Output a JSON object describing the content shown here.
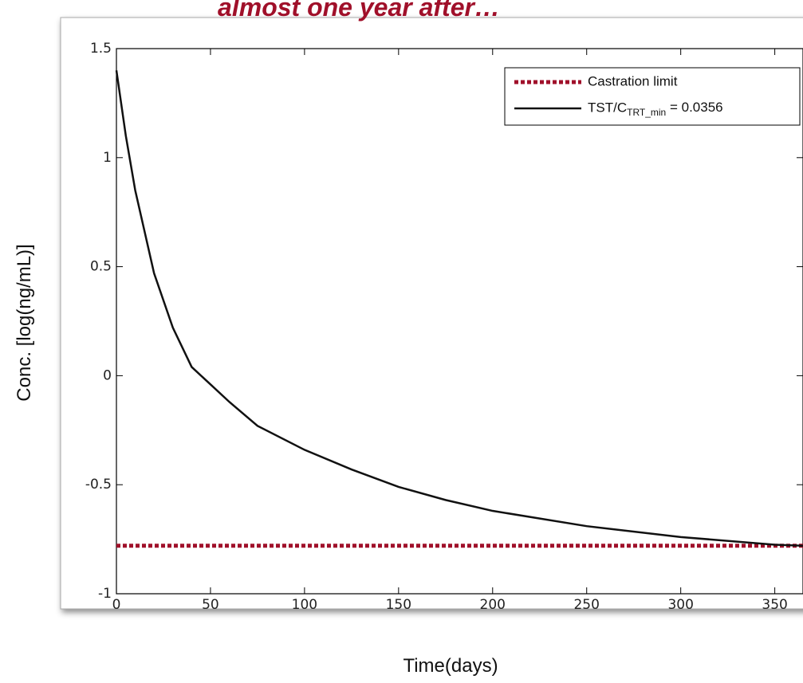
{
  "chart_data": {
    "type": "line",
    "title": "almost one year after…",
    "x_label": "Time(days)",
    "y_label": "Conc.  [log(ng/mL)]",
    "xlim": [
      0,
      365
    ],
    "ylim": [
      -1,
      1.5
    ],
    "xticks": [
      0,
      50,
      100,
      150,
      200,
      250,
      300,
      350
    ],
    "yticks": [
      1.5,
      1,
      0.5,
      0,
      -0.5,
      -1
    ],
    "legend": "upper right",
    "series": [
      {
        "name": "Castration limit",
        "color": "#a0102a",
        "style": "dotted",
        "value": -0.78
      },
      {
        "name": "TST/C",
        "name_subscript": "TRT_min",
        "name_suffix": " = 0.0356",
        "color": "#111111",
        "style": "solid",
        "x": [
          0,
          5,
          10,
          20,
          30,
          40,
          50,
          60,
          75,
          100,
          125,
          150,
          175,
          200,
          250,
          300,
          350,
          365
        ],
        "values": [
          1.4,
          1.1,
          0.85,
          0.47,
          0.22,
          0.04,
          -0.04,
          -0.12,
          -0.23,
          -0.34,
          -0.43,
          -0.51,
          -0.57,
          -0.62,
          -0.69,
          -0.74,
          -0.775,
          -0.78
        ]
      }
    ]
  }
}
